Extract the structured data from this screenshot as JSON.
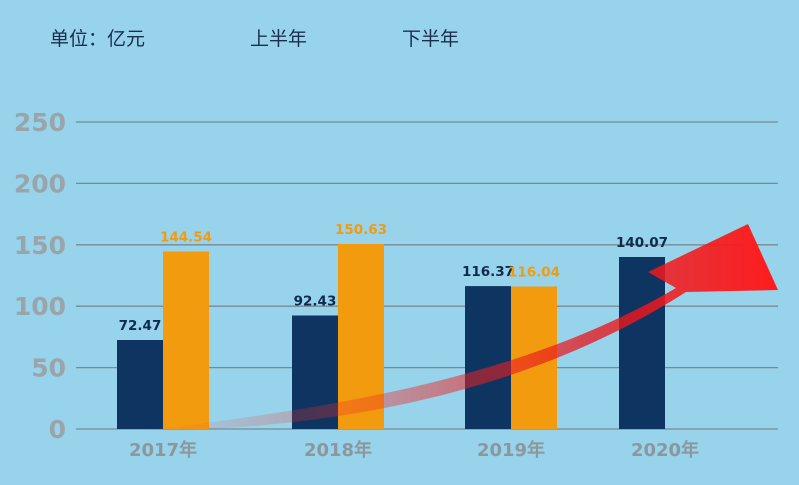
{
  "chart_data": {
    "type": "bar",
    "unit_label": "单位：亿元",
    "categories": [
      "2017年",
      "2018年",
      "2019年",
      "2020年"
    ],
    "series": [
      {
        "name": "上半年",
        "color": "#0e3461",
        "values": [
          72.47,
          92.43,
          116.37,
          140.07
        ],
        "labels": [
          "72.47",
          "92.43",
          "116.37",
          "140.07"
        ]
      },
      {
        "name": "下半年",
        "color": "#f29b0e",
        "values": [
          144.54,
          150.63,
          116.04,
          null
        ],
        "labels": [
          "144.54",
          "150.63",
          "116.04",
          ""
        ]
      }
    ],
    "yticks": [
      "0",
      "50",
      "100",
      "150",
      "200",
      "250"
    ],
    "ylim": [
      0,
      250
    ],
    "grid": true,
    "legend_position": "top",
    "trend_arrow": {
      "color": "#e8151b",
      "direction": "up-right"
    }
  }
}
